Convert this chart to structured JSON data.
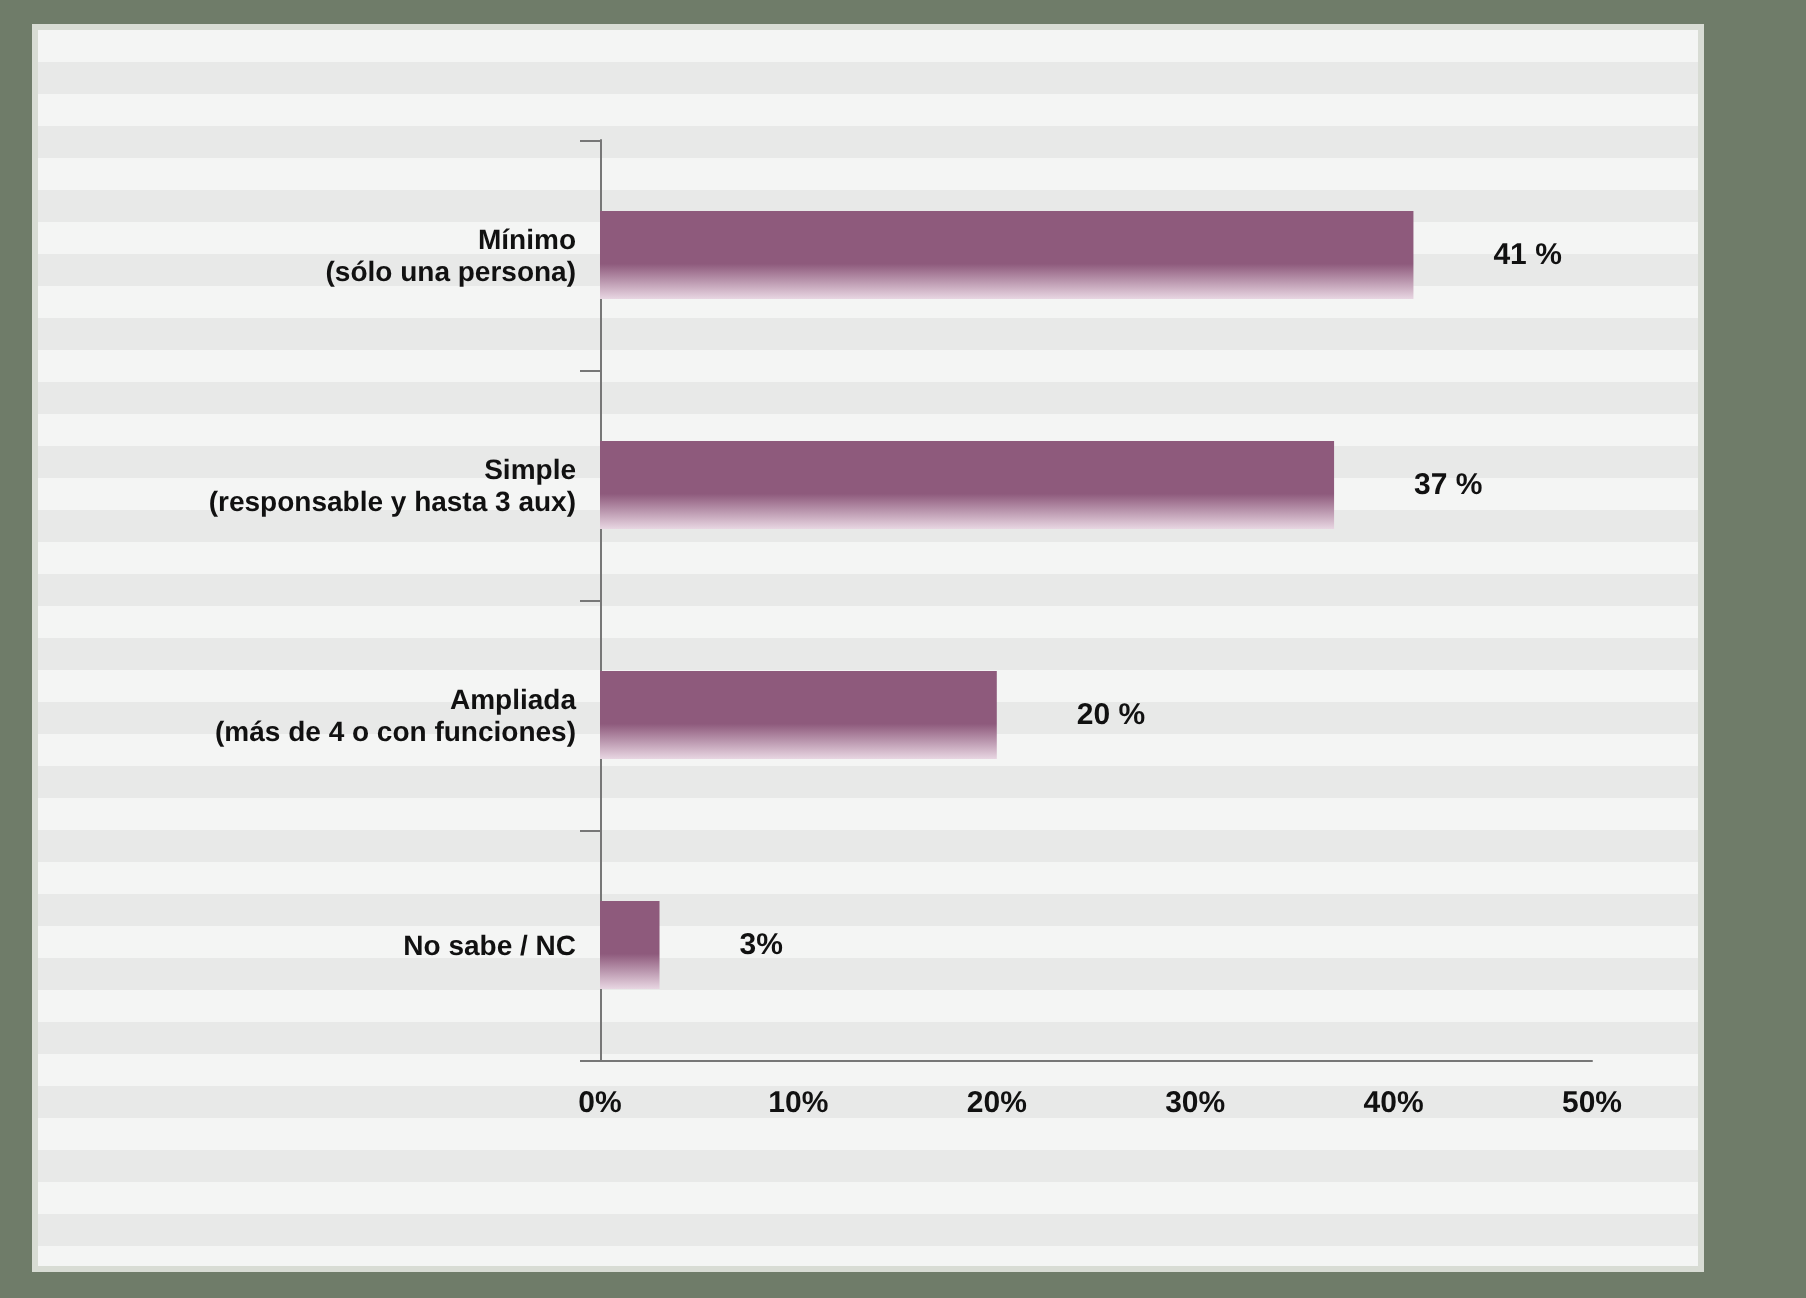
{
  "chart_data": {
    "type": "bar",
    "orientation": "horizontal",
    "categories": [
      "Mínimo\n(sólo una persona)",
      "Simple\n(responsable y hasta 3 aux)",
      "Ampliada\n(más de 4 o con funciones)",
      "No sabe / NC"
    ],
    "values": [
      41,
      37,
      20,
      3
    ],
    "value_labels": [
      "41 %",
      "37 %",
      "20 %",
      "3%"
    ],
    "color": "#8e5a7c",
    "xlim": [
      0,
      50
    ],
    "xticks": [
      {
        "value": 0,
        "label": "0%"
      },
      {
        "value": 10,
        "label": "10%"
      },
      {
        "value": 20,
        "label": "20%"
      },
      {
        "value": 30,
        "label": "30%"
      },
      {
        "value": 40,
        "label": "40%"
      },
      {
        "value": 50,
        "label": "50%"
      }
    ],
    "grid": false
  }
}
